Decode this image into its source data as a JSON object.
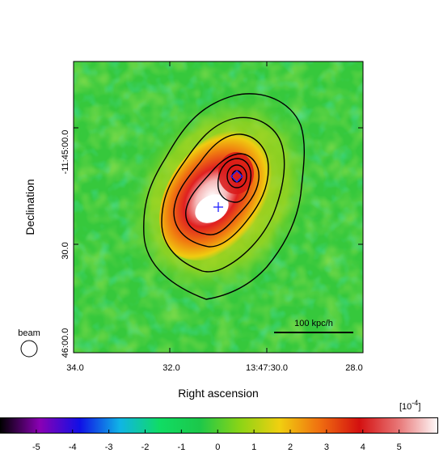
{
  "chart_data": {
    "type": "heatmap",
    "title": "",
    "xlabel": "Right ascension",
    "ylabel": "Declination",
    "x_ticks": [
      "34.0",
      "32.0",
      "13:47:30.0",
      "28.0"
    ],
    "y_ticks": [
      "-11:45:00.0",
      "30.0",
      "46:00.0"
    ],
    "colorbar": {
      "multiplier_label": "[10",
      "multiplier_exp": "-4",
      "multiplier_close": "]",
      "ticks": [
        "-5",
        "-4",
        "-3",
        "-2",
        "-1",
        "0",
        "1",
        "2",
        "3",
        "4",
        "5"
      ],
      "tick_values": [
        -5,
        -4,
        -3,
        -2,
        -1,
        0,
        1,
        2,
        3,
        4,
        5
      ],
      "range": [
        -6,
        6.1
      ],
      "colormap": [
        "#000000",
        "#8a00b4",
        "#1010e6",
        "#10b4e6",
        "#10dc64",
        "#1cc84a",
        "#8ad416",
        "#f0d010",
        "#f07010",
        "#d41010",
        "#e87878",
        "#ffffff"
      ]
    },
    "scale_bar_label": "100 kpc/h",
    "beam_label": "beam",
    "markers": [
      {
        "type": "cross",
        "color": "#2020ff"
      },
      {
        "type": "diamond",
        "color": "#2020ff"
      }
    ],
    "background_color": "#36c83c",
    "peak_color": "#ffffff"
  }
}
